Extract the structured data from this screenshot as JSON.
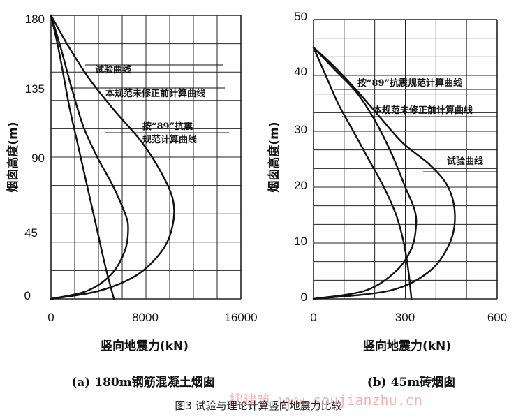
{
  "chart_data": [
    {
      "type": "line",
      "caption": "(a) 180m钢筋混凝土烟囱",
      "xlabel": "竖向地震力(kN)",
      "ylabel": "烟囱高度(m)",
      "xlim": [
        0,
        16000
      ],
      "ylim": [
        0,
        180
      ],
      "xticks": [
        "0",
        "8000",
        "16000"
      ],
      "yticks": [
        "0",
        "45",
        "90",
        "135",
        "180"
      ],
      "grid": true,
      "series": [
        {
          "name": "试验曲线",
          "points": [
            [
              0,
              180
            ],
            [
              800,
              160
            ],
            [
              1700,
              135
            ],
            [
              2700,
              110
            ],
            [
              3900,
              90
            ],
            [
              5200,
              72
            ],
            [
              6200,
              55
            ],
            [
              6500,
              45
            ],
            [
              6200,
              30
            ],
            [
              5000,
              15
            ],
            [
              3000,
              5
            ],
            [
              0,
              0
            ]
          ]
        },
        {
          "name": "本规范未修正前计算曲线",
          "points": [
            [
              0,
              180
            ],
            [
              1500,
              160
            ],
            [
              3200,
              140
            ],
            [
              5300,
              120
            ],
            [
              7600,
              100
            ],
            [
              9300,
              80
            ],
            [
              10300,
              62
            ],
            [
              10200,
              45
            ],
            [
              9300,
              30
            ],
            [
              7200,
              15
            ],
            [
              4000,
              5
            ],
            [
              0,
              0
            ]
          ]
        },
        {
          "name": "按“89”抗震规范计算曲线",
          "points": [
            [
              0,
              180
            ],
            [
              600,
              160
            ],
            [
              1100,
              140
            ],
            [
              1600,
              120
            ],
            [
              2200,
              100
            ],
            [
              2800,
              80
            ],
            [
              3400,
              60
            ],
            [
              4000,
              40
            ],
            [
              4600,
              20
            ],
            [
              5300,
              0
            ]
          ]
        }
      ],
      "annotations": [
        {
          "text": "试验曲线"
        },
        {
          "text": "本规范未修正前计算曲线"
        },
        {
          "text": "按“89”抗震"
        },
        {
          "text": "规范计算曲线"
        }
      ]
    },
    {
      "type": "line",
      "caption": "(b) 45m砖烟囱",
      "xlabel": "竖向地震力(kN)",
      "ylabel": "烟囱高度(m)",
      "xlim": [
        0,
        600
      ],
      "ylim": [
        0,
        50
      ],
      "xticks": [
        "0",
        "300",
        "600"
      ],
      "yticks": [
        "0",
        "10",
        "20",
        "30",
        "40",
        "50"
      ],
      "grid": true,
      "series": [
        {
          "name": "试验曲线",
          "points": [
            [
              0,
              45
            ],
            [
              60,
              42
            ],
            [
              130,
              38
            ],
            [
              210,
              33
            ],
            [
              290,
              28
            ],
            [
              380,
              24
            ],
            [
              440,
              20
            ],
            [
              462,
              15
            ],
            [
              445,
              10
            ],
            [
              380,
              5
            ],
            [
              250,
              1.5
            ],
            [
              0,
              0
            ]
          ]
        },
        {
          "name": "本规范未修正前计算曲线",
          "points": [
            [
              0,
              45
            ],
            [
              70,
              41
            ],
            [
              140,
              37
            ],
            [
              200,
              32
            ],
            [
              255,
              26
            ],
            [
              300,
              20
            ],
            [
              330,
              16
            ],
            [
              335,
              13
            ],
            [
              320,
              9
            ],
            [
              270,
              5
            ],
            [
              170,
              1.5
            ],
            [
              0,
              0
            ]
          ]
        },
        {
          "name": "按“89”抗震规范计算曲线",
          "points": [
            [
              0,
              45
            ],
            [
              40,
              40
            ],
            [
              80,
              35
            ],
            [
              130,
              30
            ],
            [
              180,
              25
            ],
            [
              230,
              20
            ],
            [
              270,
              15
            ],
            [
              295,
              10
            ],
            [
              310,
              5
            ],
            [
              320,
              0
            ]
          ]
        }
      ],
      "annotations": [
        {
          "text": "按“89”抗震规范计算曲线"
        },
        {
          "text": "本规范未修正前计算曲线"
        },
        {
          "text": "试验曲线"
        }
      ]
    }
  ],
  "figure_caption": "图3   试验与理论计算竖向地震力比较",
  "watermark": "搜建筑 www.soujianzhu.cn",
  "colors": {
    "ink": "#111111",
    "grid": "#222222",
    "watermark": "#f3b4b4",
    "background": "#ffffff"
  }
}
